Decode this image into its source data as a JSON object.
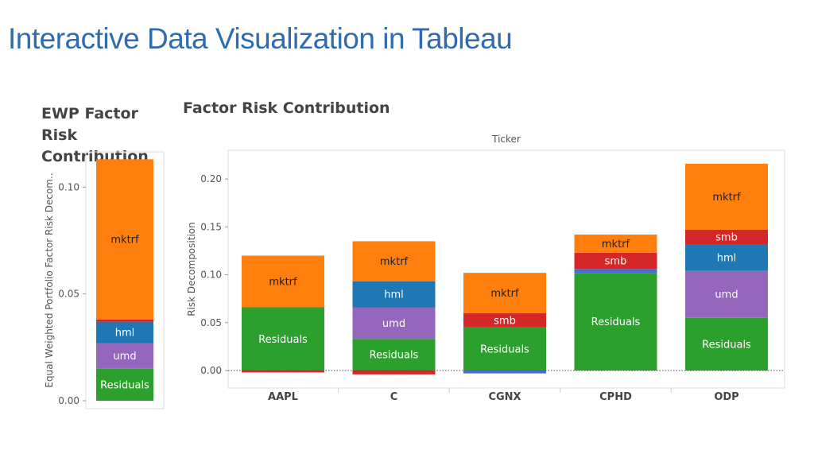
{
  "slide": {
    "title": "Interactive Data Visualization in Tableau"
  },
  "colors": {
    "Residuals": "#2ca02c",
    "umd": "#9467bd",
    "hml": "#1f77b4",
    "mktrf": "#ff7f0e",
    "smb": "#d62728",
    "other_red": "#d62728",
    "other_blue": "#4a6bd1"
  },
  "chart_data": [
    {
      "type": "bar",
      "stacked": true,
      "title": "EWP Factor Risk Contribution",
      "ylabel": "Equal Weighted Portfolio Factor Risk Decom..",
      "ylim": [
        0,
        0.115
      ],
      "yticks": [
        "0.00",
        "0.05",
        "0.10"
      ],
      "ytick_values": [
        0,
        0.05,
        0.1
      ],
      "categories": [
        ""
      ],
      "series": [
        {
          "name": "Residuals",
          "label": "Residuals",
          "values": [
            0.015
          ]
        },
        {
          "name": "umd",
          "label": "umd",
          "values": [
            0.012
          ]
        },
        {
          "name": "hml",
          "label": "hml",
          "values": [
            0.01
          ]
        },
        {
          "name": "smb",
          "label": "",
          "values": [
            0.001
          ]
        },
        {
          "name": "mktrf",
          "label": "mktrf",
          "values": [
            0.075
          ]
        }
      ]
    },
    {
      "type": "bar",
      "stacked": true,
      "title": "Factor Risk Contribution",
      "header": "Ticker",
      "ylabel": "Risk Decomposition",
      "ylim": [
        -0.005,
        0.225
      ],
      "yticks": [
        "0.00",
        "0.05",
        "0.10",
        "0.15",
        "0.20"
      ],
      "ytick_values": [
        0,
        0.05,
        0.1,
        0.15,
        0.2
      ],
      "categories": [
        "AAPL",
        "C",
        "CGNX",
        "CPHD",
        "ODP"
      ],
      "negative_series": [
        {
          "name": "other_red",
          "values": [
            -0.002,
            -0.004,
            0,
            0,
            0
          ]
        },
        {
          "name": "other_blue",
          "values": [
            0,
            0,
            -0.003,
            0,
            0
          ]
        }
      ],
      "series": [
        {
          "name": "Residuals",
          "label": "Residuals",
          "values": [
            0.066,
            0.033,
            0.045,
            0.102,
            0.055
          ]
        },
        {
          "name": "umd",
          "label": "umd",
          "values": [
            0,
            0.033,
            0,
            0,
            0.049
          ]
        },
        {
          "name": "other_blue",
          "label": "",
          "values": [
            0,
            0,
            0,
            0.004,
            0
          ]
        },
        {
          "name": "hml",
          "label": "hml",
          "values": [
            0,
            0.027,
            0,
            0,
            0.028
          ]
        },
        {
          "name": "smb",
          "label": "smb",
          "values": [
            0,
            0,
            0.015,
            0.017,
            0.015
          ]
        },
        {
          "name": "mktrf",
          "label": "mktrf",
          "values": [
            0.054,
            0.042,
            0.042,
            0.019,
            0.069
          ]
        }
      ]
    }
  ]
}
